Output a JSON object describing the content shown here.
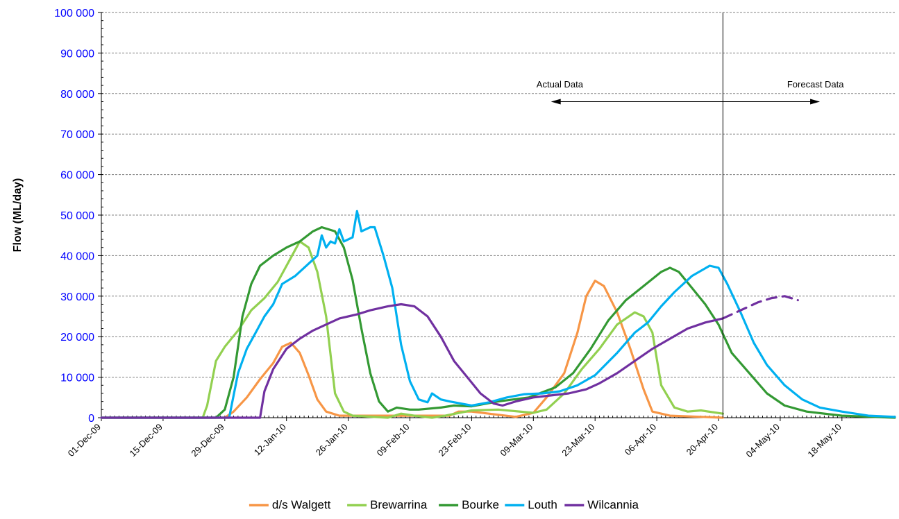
{
  "chart_data": {
    "type": "line",
    "title": "",
    "xlabel": "",
    "ylabel": "Flow (ML/day)",
    "ylim": [
      0,
      100000
    ],
    "yticks": [
      "0",
      "10 000",
      "20 000",
      "30 000",
      "40 000",
      "50 000",
      "60 000",
      "70 000",
      "80 000",
      "90 000",
      "100 000"
    ],
    "xlim": [
      "2009-12-01",
      "2010-05-30"
    ],
    "xtick_labels": [
      "01-Dec-09",
      "15-Dec-09",
      "29-Dec-09",
      "12-Jan-10",
      "26-Jan-10",
      "09-Feb-10",
      "23-Feb-10",
      "09-Mar-10",
      "23-Mar-10",
      "06-Apr-10",
      "20-Apr-10",
      "04-May-10",
      "18-May-10"
    ],
    "xtick_dates": [
      "2009-12-01",
      "2009-12-15",
      "2009-12-29",
      "2010-01-12",
      "2010-01-26",
      "2010-02-09",
      "2010-02-23",
      "2010-03-09",
      "2010-03-23",
      "2010-04-06",
      "2010-04-20",
      "2010-05-04",
      "2010-05-18"
    ],
    "grid": "horizontal dashed",
    "legend_position": "bottom",
    "divider_date": "2010-04-21",
    "annotations": {
      "actual": "Actual Data",
      "forecast": "Forecast Data"
    },
    "series": [
      {
        "name": "d/s Walgett",
        "color": "#f79646",
        "points": [
          [
            "2009-12-01",
            0
          ],
          [
            "2009-12-29",
            0
          ],
          [
            "2009-12-31",
            1500
          ],
          [
            "2010-01-03",
            5000
          ],
          [
            "2010-01-06",
            9500
          ],
          [
            "2010-01-09",
            13500
          ],
          [
            "2010-01-11",
            17500
          ],
          [
            "2010-01-13",
            18500
          ],
          [
            "2010-01-15",
            16000
          ],
          [
            "2010-01-17",
            10500
          ],
          [
            "2010-01-19",
            4500
          ],
          [
            "2010-01-21",
            1500
          ],
          [
            "2010-01-24",
            500
          ],
          [
            "2010-02-18",
            500
          ],
          [
            "2010-02-20",
            1500
          ],
          [
            "2010-02-23",
            1500
          ],
          [
            "2010-03-05",
            200
          ],
          [
            "2010-03-09",
            1200
          ],
          [
            "2010-03-12",
            5000
          ],
          [
            "2010-03-16",
            11000
          ],
          [
            "2010-03-19",
            21000
          ],
          [
            "2010-03-21",
            30000
          ],
          [
            "2010-03-23",
            33800
          ],
          [
            "2010-03-25",
            32500
          ],
          [
            "2010-03-28",
            26000
          ],
          [
            "2010-03-31",
            17000
          ],
          [
            "2010-04-03",
            7000
          ],
          [
            "2010-04-05",
            1500
          ],
          [
            "2010-04-09",
            500
          ],
          [
            "2010-04-21",
            0
          ]
        ]
      },
      {
        "name": "Brewarrina",
        "color": "#92d050",
        "points": [
          [
            "2009-12-01",
            0
          ],
          [
            "2009-12-24",
            0
          ],
          [
            "2009-12-25",
            3000
          ],
          [
            "2009-12-27",
            14000
          ],
          [
            "2009-12-29",
            17500
          ],
          [
            "2010-01-01",
            21500
          ],
          [
            "2010-01-04",
            26500
          ],
          [
            "2010-01-07",
            29500
          ],
          [
            "2010-01-10",
            33500
          ],
          [
            "2010-01-13",
            39500
          ],
          [
            "2010-01-15",
            43500
          ],
          [
            "2010-01-17",
            42000
          ],
          [
            "2010-01-19",
            36000
          ],
          [
            "2010-01-21",
            25000
          ],
          [
            "2010-01-23",
            6000
          ],
          [
            "2010-01-25",
            1500
          ],
          [
            "2010-01-27",
            500
          ],
          [
            "2010-02-04",
            0
          ],
          [
            "2010-02-07",
            1000
          ],
          [
            "2010-02-10",
            500
          ],
          [
            "2010-02-14",
            0
          ],
          [
            "2010-02-17",
            500
          ],
          [
            "2010-02-23",
            1800
          ],
          [
            "2010-03-01",
            2000
          ],
          [
            "2010-03-09",
            1200
          ],
          [
            "2010-03-12",
            2000
          ],
          [
            "2010-03-16",
            6000
          ],
          [
            "2010-03-20",
            12000
          ],
          [
            "2010-03-24",
            17000
          ],
          [
            "2010-03-28",
            23000
          ],
          [
            "2010-04-01",
            26000
          ],
          [
            "2010-04-03",
            25000
          ],
          [
            "2010-04-05",
            21000
          ],
          [
            "2010-04-07",
            8000
          ],
          [
            "2010-04-10",
            2500
          ],
          [
            "2010-04-13",
            1500
          ],
          [
            "2010-04-16",
            1800
          ],
          [
            "2010-04-21",
            1000
          ]
        ]
      },
      {
        "name": "Bourke",
        "color": "#339933",
        "points": [
          [
            "2009-12-01",
            0
          ],
          [
            "2009-12-27",
            0
          ],
          [
            "2009-12-29",
            2000
          ],
          [
            "2009-12-31",
            10000
          ],
          [
            "2010-01-02",
            25000
          ],
          [
            "2010-01-04",
            33000
          ],
          [
            "2010-01-06",
            37500
          ],
          [
            "2010-01-09",
            40000
          ],
          [
            "2010-01-12",
            42000
          ],
          [
            "2010-01-15",
            43500
          ],
          [
            "2010-01-18",
            46000
          ],
          [
            "2010-01-20",
            47000
          ],
          [
            "2010-01-23",
            46000
          ],
          [
            "2010-01-25",
            42000
          ],
          [
            "2010-01-27",
            34000
          ],
          [
            "2010-01-29",
            22000
          ],
          [
            "2010-01-31",
            11000
          ],
          [
            "2010-02-02",
            4000
          ],
          [
            "2010-02-04",
            1500
          ],
          [
            "2010-02-06",
            2500
          ],
          [
            "2010-02-09",
            2000
          ],
          [
            "2010-02-11",
            2000
          ],
          [
            "2010-02-16",
            2500
          ],
          [
            "2010-02-19",
            3000
          ],
          [
            "2010-02-23",
            2800
          ],
          [
            "2010-03-01",
            4000
          ],
          [
            "2010-03-08",
            5000
          ],
          [
            "2010-03-14",
            7500
          ],
          [
            "2010-03-18",
            11000
          ],
          [
            "2010-03-22",
            17000
          ],
          [
            "2010-03-26",
            24000
          ],
          [
            "2010-03-30",
            29000
          ],
          [
            "2010-04-03",
            32500
          ],
          [
            "2010-04-07",
            36000
          ],
          [
            "2010-04-09",
            37000
          ],
          [
            "2010-04-11",
            36000
          ],
          [
            "2010-04-14",
            32000
          ],
          [
            "2010-04-17",
            28000
          ],
          [
            "2010-04-20",
            23000
          ],
          [
            "2010-04-23",
            16000
          ],
          [
            "2010-04-27",
            11000
          ],
          [
            "2010-05-01",
            6000
          ],
          [
            "2010-05-05",
            3000
          ],
          [
            "2010-05-10",
            1500
          ],
          [
            "2010-05-18",
            500
          ],
          [
            "2010-05-30",
            0
          ]
        ]
      },
      {
        "name": "Louth",
        "color": "#00b0f0",
        "points": [
          [
            "2009-12-01",
            0
          ],
          [
            "2009-12-30",
            0
          ],
          [
            "2010-01-01",
            11000
          ],
          [
            "2010-01-03",
            17000
          ],
          [
            "2010-01-05",
            21000
          ],
          [
            "2010-01-07",
            25000
          ],
          [
            "2010-01-09",
            28000
          ],
          [
            "2010-01-11",
            33000
          ],
          [
            "2010-01-14",
            35000
          ],
          [
            "2010-01-17",
            38000
          ],
          [
            "2010-01-19",
            40000
          ],
          [
            "2010-01-20",
            45000
          ],
          [
            "2010-01-21",
            42000
          ],
          [
            "2010-01-22",
            43500
          ],
          [
            "2010-01-23",
            43000
          ],
          [
            "2010-01-24",
            46500
          ],
          [
            "2010-01-25",
            43500
          ],
          [
            "2010-01-27",
            44500
          ],
          [
            "2010-01-28",
            51000
          ],
          [
            "2010-01-29",
            46000
          ],
          [
            "2010-01-30",
            46500
          ],
          [
            "2010-01-31",
            47000
          ],
          [
            "2010-02-01",
            47000
          ],
          [
            "2010-02-03",
            40000
          ],
          [
            "2010-02-05",
            32000
          ],
          [
            "2010-02-07",
            18000
          ],
          [
            "2010-02-09",
            9000
          ],
          [
            "2010-02-11",
            4500
          ],
          [
            "2010-02-13",
            3800
          ],
          [
            "2010-02-14",
            6000
          ],
          [
            "2010-02-16",
            4500
          ],
          [
            "2010-02-18",
            4000
          ],
          [
            "2010-02-23",
            3000
          ],
          [
            "2010-02-27",
            3800
          ],
          [
            "2010-03-03",
            5000
          ],
          [
            "2010-03-07",
            5800
          ],
          [
            "2010-03-11",
            6000
          ],
          [
            "2010-03-15",
            6500
          ],
          [
            "2010-03-19",
            8000
          ],
          [
            "2010-03-23",
            10500
          ],
          [
            "2010-03-28",
            16000
          ],
          [
            "2010-04-01",
            21000
          ],
          [
            "2010-04-04",
            23500
          ],
          [
            "2010-04-07",
            27500
          ],
          [
            "2010-04-10",
            31000
          ],
          [
            "2010-04-14",
            35000
          ],
          [
            "2010-04-18",
            37500
          ],
          [
            "2010-04-20",
            37000
          ],
          [
            "2010-04-22",
            33000
          ],
          [
            "2010-04-25",
            26000
          ],
          [
            "2010-04-28",
            18500
          ],
          [
            "2010-05-01",
            13000
          ],
          [
            "2010-05-05",
            8000
          ],
          [
            "2010-05-09",
            4500
          ],
          [
            "2010-05-13",
            2500
          ],
          [
            "2010-05-18",
            1500
          ],
          [
            "2010-05-24",
            500
          ],
          [
            "2010-05-30",
            200
          ]
        ]
      },
      {
        "name": "Wilcannia",
        "color": "#7030a0",
        "points": [
          [
            "2009-12-01",
            0
          ],
          [
            "2010-01-06",
            0
          ],
          [
            "2010-01-07",
            6500
          ],
          [
            "2010-01-09",
            12000
          ],
          [
            "2010-01-12",
            17000
          ],
          [
            "2010-01-15",
            19500
          ],
          [
            "2010-01-18",
            21500
          ],
          [
            "2010-01-21",
            23000
          ],
          [
            "2010-01-24",
            24500
          ],
          [
            "2010-01-28",
            25500
          ],
          [
            "2010-01-31",
            26500
          ],
          [
            "2010-02-04",
            27500
          ],
          [
            "2010-02-07",
            28000
          ],
          [
            "2010-02-10",
            27500
          ],
          [
            "2010-02-13",
            25000
          ],
          [
            "2010-02-16",
            20000
          ],
          [
            "2010-02-19",
            14000
          ],
          [
            "2010-02-22",
            10000
          ],
          [
            "2010-02-25",
            6000
          ],
          [
            "2010-02-28",
            3500
          ],
          [
            "2010-03-02",
            3000
          ],
          [
            "2010-03-05",
            4000
          ],
          [
            "2010-03-09",
            5000
          ],
          [
            "2010-03-13",
            5500
          ],
          [
            "2010-03-17",
            6000
          ],
          [
            "2010-03-21",
            7000
          ],
          [
            "2010-03-24",
            8500
          ],
          [
            "2010-03-28",
            11000
          ],
          [
            "2010-04-01",
            14000
          ],
          [
            "2010-04-05",
            17000
          ],
          [
            "2010-04-09",
            19500
          ],
          [
            "2010-04-13",
            22000
          ],
          [
            "2010-04-17",
            23500
          ],
          [
            "2010-04-21",
            24500
          ]
        ]
      },
      {
        "name": "Wilcannia",
        "forecast": true,
        "color": "#7030a0",
        "points": [
          [
            "2010-04-21",
            24500
          ],
          [
            "2010-04-25",
            26500
          ],
          [
            "2010-04-29",
            28500
          ],
          [
            "2010-05-02",
            29500
          ],
          [
            "2010-05-05",
            30000
          ],
          [
            "2010-05-08",
            29000
          ]
        ]
      }
    ]
  }
}
